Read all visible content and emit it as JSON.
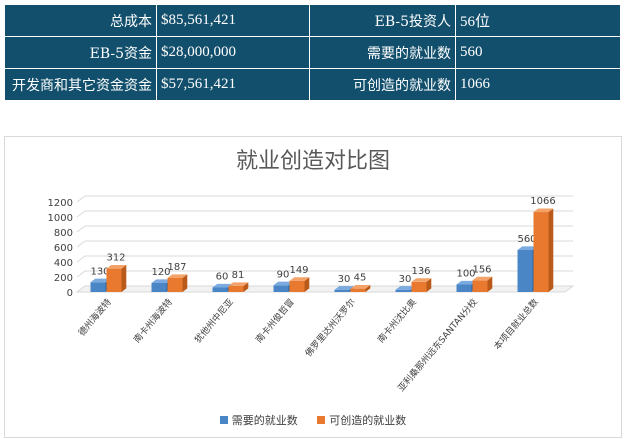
{
  "table": {
    "rows": [
      {
        "label1": "总成本",
        "value1": "$85,561,421",
        "label2": "EB-5投资人",
        "value2": "56位"
      },
      {
        "label1": "EB-5资金",
        "value1": "$28,000,000",
        "label2": "需要的就业数",
        "value2": "560"
      },
      {
        "label1": "开发商和其它资金资金",
        "value1": "$57,561,421",
        "label2": "可创造的就业数",
        "value2": "1066"
      }
    ]
  },
  "colors": {
    "table_bg": "#124f6c",
    "series_blue": "#4a86c6",
    "series_orange": "#e8792e"
  },
  "chart_data": {
    "type": "bar",
    "title": "就业创造对比图",
    "categories": [
      "德州海波特",
      "南卡州海波特",
      "犹他州中尼亚",
      "南卡州俊哲冒",
      "佛罗里达州沃罗尔",
      "南卡州沈比奥",
      "亚利桑那州远东SANTAN分校",
      "本项目就业总数"
    ],
    "series": [
      {
        "name": "需要的就业数",
        "values": [
          130,
          120,
          60,
          90,
          30,
          30,
          100,
          560
        ]
      },
      {
        "name": "可创造的就业数",
        "values": [
          312,
          187,
          81,
          149,
          45,
          136,
          156,
          1066
        ]
      }
    ],
    "ylim": [
      0,
      1200
    ],
    "yticks": [
      0,
      200,
      400,
      600,
      800,
      1000,
      1200
    ],
    "grid": true,
    "legend_position": "bottom"
  }
}
